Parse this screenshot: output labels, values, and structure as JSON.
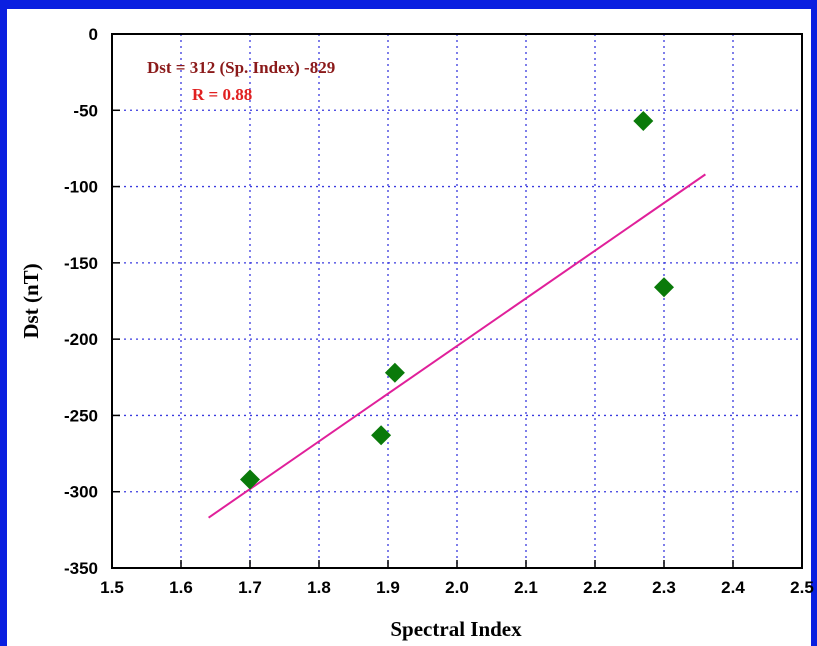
{
  "chart_data": {
    "type": "scatter",
    "xlabel": "Spectral Index",
    "ylabel": "Dst (nT)",
    "xlim": [
      1.5,
      2.5
    ],
    "ylim": [
      -350,
      0
    ],
    "x_ticks": [
      "1.5",
      "1.6",
      "1.7",
      "1.8",
      "1.9",
      "2.0",
      "2.1",
      "2.2",
      "2.3",
      "2.4",
      "2.5"
    ],
    "y_ticks": [
      "0",
      "-50",
      "-100",
      "-150",
      "-200",
      "-250",
      "-300",
      "-350"
    ],
    "grid": true,
    "points": [
      {
        "x": 1.7,
        "y": -292
      },
      {
        "x": 1.89,
        "y": -263
      },
      {
        "x": 1.91,
        "y": -222
      },
      {
        "x": 2.27,
        "y": -57
      },
      {
        "x": 2.3,
        "y": -166
      }
    ],
    "fit_line": {
      "x": [
        1.64,
        2.36
      ],
      "y": [
        -317,
        -92
      ]
    },
    "annotations": {
      "equation": "Dst = 312 (Sp. Index) -829",
      "r_value": "R = 0.88"
    },
    "colors": {
      "marker": "#0a7a0a",
      "fit_line": "#e0209a",
      "grid": "#3a3adf",
      "equation": "#8b1a1a",
      "r_value": "#e02020",
      "frame": "#0a1fe0"
    }
  }
}
